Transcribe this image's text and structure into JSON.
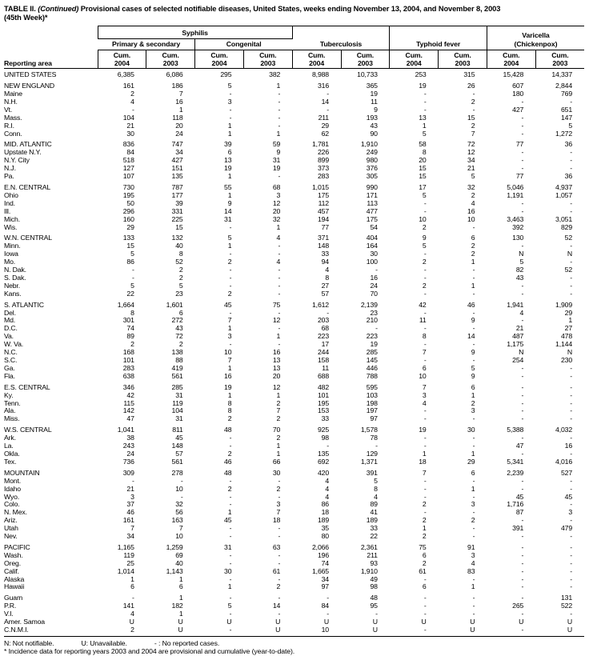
{
  "title": {
    "prefix": "TABLE II.",
    "continued": "(Continued)",
    "rest": "Provisional cases of selected notifiable diseases, United States, weeks ending November 13, 2004, and November 8, 2003",
    "line2": "(45th Week)*"
  },
  "colors": {
    "text": "#000000",
    "rule": "#000000",
    "background": "#ffffff"
  },
  "header": {
    "reporting_area": "Reporting area",
    "syphilis": "Syphilis",
    "primary_secondary": "Primary & secondary",
    "congenital": "Congenital",
    "tuberculosis": "Tuberculosis",
    "typhoid": "Typhoid fever",
    "varicella": "Varicella",
    "chickenpox": "(Chickenpox)",
    "cum_label": "Cum.",
    "year_columns": [
      "2004",
      "2003",
      "2004",
      "2003",
      "2004",
      "2003",
      "2004",
      "2003",
      "2004",
      "2003"
    ]
  },
  "rows": [
    {
      "area": "UNITED STATES",
      "section": true,
      "values": [
        "6,385",
        "6,086",
        "295",
        "382",
        "8,988",
        "10,733",
        "253",
        "315",
        "15,428",
        "14,337"
      ]
    },
    {
      "area": "NEW ENGLAND",
      "section": true,
      "gap": true,
      "values": [
        "161",
        "186",
        "5",
        "1",
        "316",
        "365",
        "19",
        "26",
        "607",
        "2,844"
      ]
    },
    {
      "area": "Maine",
      "values": [
        "2",
        "7",
        "-",
        "-",
        "-",
        "19",
        "-",
        "-",
        "180",
        "769"
      ]
    },
    {
      "area": "N.H.",
      "values": [
        "4",
        "16",
        "3",
        "-",
        "14",
        "11",
        "-",
        "2",
        "-",
        "-"
      ]
    },
    {
      "area": "Vt.",
      "values": [
        "-",
        "1",
        "-",
        "-",
        "-",
        "9",
        "-",
        "-",
        "427",
        "651"
      ]
    },
    {
      "area": "Mass.",
      "values": [
        "104",
        "118",
        "-",
        "-",
        "211",
        "193",
        "13",
        "15",
        "-",
        "147"
      ]
    },
    {
      "area": "R.I.",
      "values": [
        "21",
        "20",
        "1",
        "-",
        "29",
        "43",
        "1",
        "2",
        "-",
        "5"
      ]
    },
    {
      "area": "Conn.",
      "values": [
        "30",
        "24",
        "1",
        "1",
        "62",
        "90",
        "5",
        "7",
        "-",
        "1,272"
      ]
    },
    {
      "area": "MID. ATLANTIC",
      "section": true,
      "gap": true,
      "values": [
        "836",
        "747",
        "39",
        "59",
        "1,781",
        "1,910",
        "58",
        "72",
        "77",
        "36"
      ]
    },
    {
      "area": "Upstate N.Y.",
      "values": [
        "84",
        "34",
        "6",
        "9",
        "226",
        "249",
        "8",
        "12",
        "-",
        "-"
      ]
    },
    {
      "area": "N.Y. City",
      "values": [
        "518",
        "427",
        "13",
        "31",
        "899",
        "980",
        "20",
        "34",
        "-",
        "-"
      ]
    },
    {
      "area": "N.J.",
      "values": [
        "127",
        "151",
        "19",
        "19",
        "373",
        "376",
        "15",
        "21",
        "-",
        "-"
      ]
    },
    {
      "area": "Pa.",
      "values": [
        "107",
        "135",
        "1",
        "-",
        "283",
        "305",
        "15",
        "5",
        "77",
        "36"
      ]
    },
    {
      "area": "E.N. CENTRAL",
      "section": true,
      "gap": true,
      "values": [
        "730",
        "787",
        "55",
        "68",
        "1,015",
        "990",
        "17",
        "32",
        "5,046",
        "4,937"
      ]
    },
    {
      "area": "Ohio",
      "values": [
        "195",
        "177",
        "1",
        "3",
        "175",
        "171",
        "5",
        "2",
        "1,191",
        "1,057"
      ]
    },
    {
      "area": "Ind.",
      "values": [
        "50",
        "39",
        "9",
        "12",
        "112",
        "113",
        "-",
        "4",
        "-",
        "-"
      ]
    },
    {
      "area": "Ill.",
      "values": [
        "296",
        "331",
        "14",
        "20",
        "457",
        "477",
        "-",
        "16",
        "-",
        "-"
      ]
    },
    {
      "area": "Mich.",
      "values": [
        "160",
        "225",
        "31",
        "32",
        "194",
        "175",
        "10",
        "10",
        "3,463",
        "3,051"
      ]
    },
    {
      "area": "Wis.",
      "values": [
        "29",
        "15",
        "-",
        "1",
        "77",
        "54",
        "2",
        "-",
        "392",
        "829"
      ]
    },
    {
      "area": "W.N. CENTRAL",
      "section": true,
      "gap": true,
      "values": [
        "133",
        "132",
        "5",
        "4",
        "371",
        "404",
        "9",
        "6",
        "130",
        "52"
      ]
    },
    {
      "area": "Minn.",
      "values": [
        "15",
        "40",
        "1",
        "-",
        "148",
        "164",
        "5",
        "2",
        "-",
        "-"
      ]
    },
    {
      "area": "Iowa",
      "values": [
        "5",
        "8",
        "-",
        "-",
        "33",
        "30",
        "-",
        "2",
        "N",
        "N"
      ]
    },
    {
      "area": "Mo.",
      "values": [
        "86",
        "52",
        "2",
        "4",
        "94",
        "100",
        "2",
        "1",
        "5",
        "-"
      ]
    },
    {
      "area": "N. Dak.",
      "values": [
        "-",
        "2",
        "-",
        "-",
        "4",
        "-",
        "-",
        "-",
        "82",
        "52"
      ]
    },
    {
      "area": "S. Dak.",
      "values": [
        "-",
        "2",
        "-",
        "-",
        "8",
        "16",
        "-",
        "-",
        "43",
        "-"
      ]
    },
    {
      "area": "Nebr.",
      "values": [
        "5",
        "5",
        "-",
        "-",
        "27",
        "24",
        "2",
        "1",
        "-",
        "-"
      ]
    },
    {
      "area": "Kans.",
      "values": [
        "22",
        "23",
        "2",
        "-",
        "57",
        "70",
        "-",
        "-",
        "-",
        "-"
      ]
    },
    {
      "area": "S. ATLANTIC",
      "section": true,
      "gap": true,
      "values": [
        "1,664",
        "1,601",
        "45",
        "75",
        "1,612",
        "2,139",
        "42",
        "46",
        "1,941",
        "1,909"
      ]
    },
    {
      "area": "Del.",
      "values": [
        "8",
        "6",
        "-",
        "-",
        "-",
        "23",
        "-",
        "-",
        "4",
        "29"
      ]
    },
    {
      "area": "Md.",
      "values": [
        "301",
        "272",
        "7",
        "12",
        "203",
        "210",
        "11",
        "9",
        "-",
        "1"
      ]
    },
    {
      "area": "D.C.",
      "values": [
        "74",
        "43",
        "1",
        "-",
        "68",
        "-",
        "-",
        "-",
        "21",
        "27"
      ]
    },
    {
      "area": "Va.",
      "values": [
        "89",
        "72",
        "3",
        "1",
        "223",
        "223",
        "8",
        "14",
        "487",
        "478"
      ]
    },
    {
      "area": "W. Va.",
      "values": [
        "2",
        "2",
        "-",
        "-",
        "17",
        "19",
        "-",
        "-",
        "1,175",
        "1,144"
      ]
    },
    {
      "area": "N.C.",
      "values": [
        "168",
        "138",
        "10",
        "16",
        "244",
        "285",
        "7",
        "9",
        "N",
        "N"
      ]
    },
    {
      "area": "S.C.",
      "values": [
        "101",
        "88",
        "7",
        "13",
        "158",
        "145",
        "-",
        "-",
        "254",
        "230"
      ]
    },
    {
      "area": "Ga.",
      "values": [
        "283",
        "419",
        "1",
        "13",
        "11",
        "446",
        "6",
        "5",
        "-",
        "-"
      ]
    },
    {
      "area": "Fla.",
      "values": [
        "638",
        "561",
        "16",
        "20",
        "688",
        "788",
        "10",
        "9",
        "-",
        "-"
      ]
    },
    {
      "area": "E.S. CENTRAL",
      "section": true,
      "gap": true,
      "values": [
        "346",
        "285",
        "19",
        "12",
        "482",
        "595",
        "7",
        "6",
        "-",
        "-"
      ]
    },
    {
      "area": "Ky.",
      "values": [
        "42",
        "31",
        "1",
        "1",
        "101",
        "103",
        "3",
        "1",
        "-",
        "-"
      ]
    },
    {
      "area": "Tenn.",
      "values": [
        "115",
        "119",
        "8",
        "2",
        "195",
        "198",
        "4",
        "2",
        "-",
        "-"
      ]
    },
    {
      "area": "Ala.",
      "values": [
        "142",
        "104",
        "8",
        "7",
        "153",
        "197",
        "-",
        "3",
        "-",
        "-"
      ]
    },
    {
      "area": "Miss.",
      "values": [
        "47",
        "31",
        "2",
        "2",
        "33",
        "97",
        "-",
        "-",
        "-",
        "-"
      ]
    },
    {
      "area": "W.S. CENTRAL",
      "section": true,
      "gap": true,
      "values": [
        "1,041",
        "811",
        "48",
        "70",
        "925",
        "1,578",
        "19",
        "30",
        "5,388",
        "4,032"
      ]
    },
    {
      "area": "Ark.",
      "values": [
        "38",
        "45",
        "-",
        "2",
        "98",
        "78",
        "-",
        "-",
        "-",
        "-"
      ]
    },
    {
      "area": "La.",
      "values": [
        "243",
        "148",
        "-",
        "1",
        "-",
        "-",
        "-",
        "-",
        "47",
        "16"
      ]
    },
    {
      "area": "Okla.",
      "values": [
        "24",
        "57",
        "2",
        "1",
        "135",
        "129",
        "1",
        "1",
        "-",
        "-"
      ]
    },
    {
      "area": "Tex.",
      "values": [
        "736",
        "561",
        "46",
        "66",
        "692",
        "1,371",
        "18",
        "29",
        "5,341",
        "4,016"
      ]
    },
    {
      "area": "MOUNTAIN",
      "section": true,
      "gap": true,
      "values": [
        "309",
        "278",
        "48",
        "30",
        "420",
        "391",
        "7",
        "6",
        "2,239",
        "527"
      ]
    },
    {
      "area": "Mont.",
      "values": [
        "-",
        "-",
        "-",
        "-",
        "4",
        "5",
        "-",
        "-",
        "-",
        "-"
      ]
    },
    {
      "area": "Idaho",
      "values": [
        "21",
        "10",
        "2",
        "2",
        "4",
        "8",
        "-",
        "1",
        "-",
        "-"
      ]
    },
    {
      "area": "Wyo.",
      "values": [
        "3",
        "-",
        "-",
        "-",
        "4",
        "4",
        "-",
        "-",
        "45",
        "45"
      ]
    },
    {
      "area": "Colo.",
      "values": [
        "37",
        "32",
        "-",
        "3",
        "86",
        "89",
        "2",
        "3",
        "1,716",
        "-"
      ]
    },
    {
      "area": "N. Mex.",
      "values": [
        "46",
        "56",
        "1",
        "7",
        "18",
        "41",
        "-",
        "-",
        "87",
        "3"
      ]
    },
    {
      "area": "Ariz.",
      "values": [
        "161",
        "163",
        "45",
        "18",
        "189",
        "189",
        "2",
        "2",
        "-",
        "-"
      ]
    },
    {
      "area": "Utah",
      "values": [
        "7",
        "7",
        "-",
        "-",
        "35",
        "33",
        "1",
        "-",
        "391",
        "479"
      ]
    },
    {
      "area": "Nev.",
      "values": [
        "34",
        "10",
        "-",
        "-",
        "80",
        "22",
        "2",
        "-",
        "-",
        "-"
      ]
    },
    {
      "area": "PACIFIC",
      "section": true,
      "gap": true,
      "values": [
        "1,165",
        "1,259",
        "31",
        "63",
        "2,066",
        "2,361",
        "75",
        "91",
        "-",
        "-"
      ]
    },
    {
      "area": "Wash.",
      "values": [
        "119",
        "69",
        "-",
        "-",
        "196",
        "211",
        "6",
        "3",
        "-",
        "-"
      ]
    },
    {
      "area": "Oreg.",
      "values": [
        "25",
        "40",
        "-",
        "-",
        "74",
        "93",
        "2",
        "4",
        "-",
        "-"
      ]
    },
    {
      "area": "Calif.",
      "values": [
        "1,014",
        "1,143",
        "30",
        "61",
        "1,665",
        "1,910",
        "61",
        "83",
        "-",
        "-"
      ]
    },
    {
      "area": "Alaska",
      "values": [
        "1",
        "1",
        "-",
        "-",
        "34",
        "49",
        "-",
        "-",
        "-",
        "-"
      ]
    },
    {
      "area": "Hawaii",
      "values": [
        "6",
        "6",
        "1",
        "2",
        "97",
        "98",
        "6",
        "1",
        "-",
        "-"
      ]
    },
    {
      "area": "Guam",
      "gap": true,
      "values": [
        "-",
        "1",
        "-",
        "-",
        "-",
        "48",
        "-",
        "-",
        "-",
        "131"
      ]
    },
    {
      "area": "P.R.",
      "values": [
        "141",
        "182",
        "5",
        "14",
        "84",
        "95",
        "-",
        "-",
        "265",
        "522"
      ]
    },
    {
      "area": "V.I.",
      "values": [
        "4",
        "1",
        "-",
        "-",
        "-",
        "-",
        "-",
        "-",
        "-",
        "-"
      ]
    },
    {
      "area": "Amer. Samoa",
      "values": [
        "U",
        "U",
        "U",
        "U",
        "U",
        "U",
        "U",
        "U",
        "U",
        "U"
      ]
    },
    {
      "area": "C.N.M.I.",
      "values": [
        "2",
        "U",
        "-",
        "U",
        "10",
        "U",
        "-",
        "U",
        "-",
        "U"
      ]
    }
  ],
  "footnotes": {
    "n": "N: Not notifiable.",
    "u": "U: Unavailable.",
    "dash": "- : No reported cases.",
    "star": "* Incidence data for reporting years 2003 and 2004 are provisional and cumulative (year-to-date)."
  }
}
